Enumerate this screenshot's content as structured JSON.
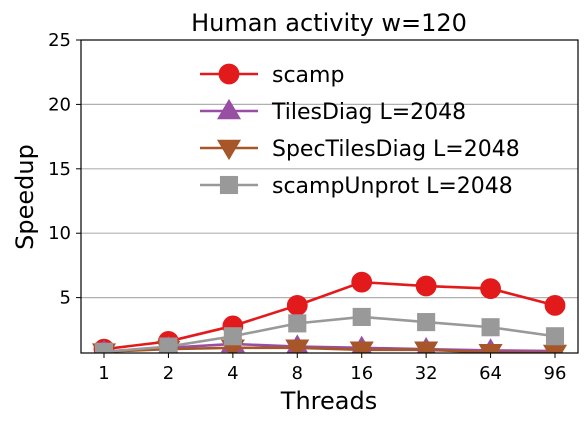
{
  "chart_data": {
    "type": "line",
    "title": "Human activity w=120",
    "xlabel": "Threads",
    "ylabel": "Speedup",
    "categories": [
      "1",
      "2",
      "4",
      "8",
      "16",
      "32",
      "64",
      "96"
    ],
    "ylim": [
      0.7,
      25
    ],
    "yticks": [
      5,
      10,
      15,
      20,
      25
    ],
    "grid": "horizontal",
    "legend_position": "top-center",
    "series": [
      {
        "name": "scamp",
        "color": "#e31a1c",
        "marker": "circle",
        "values": [
          1.0,
          1.6,
          2.8,
          4.4,
          6.2,
          5.9,
          5.7,
          4.4
        ]
      },
      {
        "name": "TilesDiag L=2048",
        "color": "#984ea3",
        "marker": "triangle-up",
        "values": [
          0.8,
          1.1,
          1.4,
          1.2,
          1.1,
          1.0,
          0.9,
          0.85
        ]
      },
      {
        "name": "SpecTilesDiag L=2048",
        "color": "#a65628",
        "marker": "triangle-down",
        "values": [
          0.8,
          1.0,
          1.1,
          1.1,
          0.95,
          0.95,
          0.75,
          0.7
        ]
      },
      {
        "name": "scampUnprot L=2048",
        "color": "#999999",
        "marker": "square",
        "values": [
          0.8,
          1.2,
          2.0,
          3.0,
          3.5,
          3.1,
          2.7,
          2.0
        ]
      }
    ]
  }
}
